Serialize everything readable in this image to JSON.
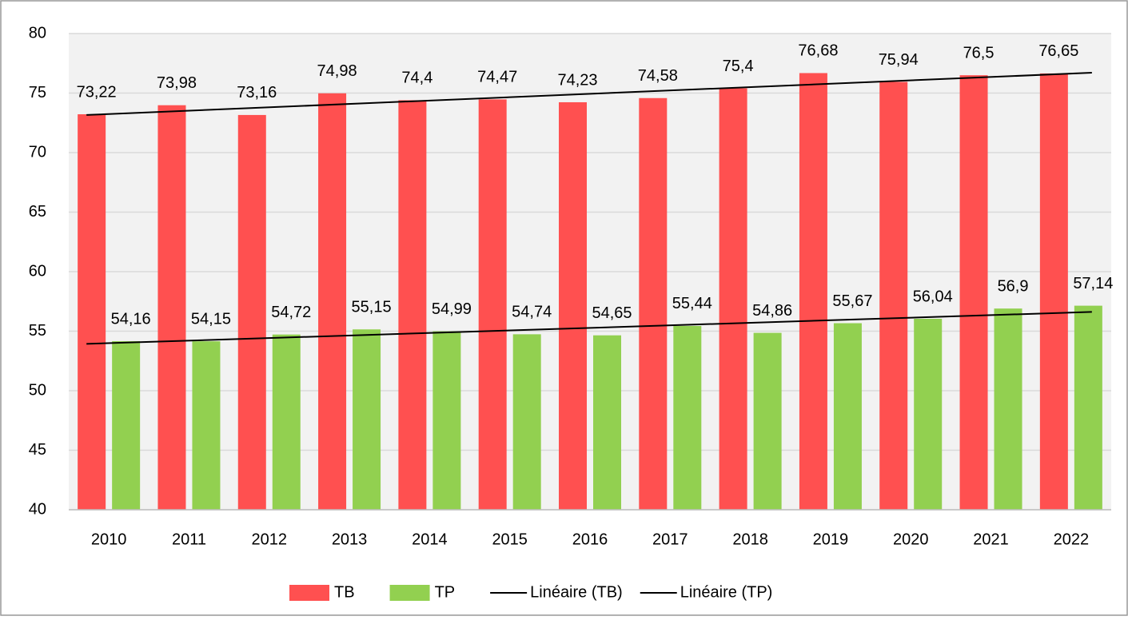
{
  "chart_data": {
    "type": "bar",
    "categories": [
      "2010",
      "2011",
      "2012",
      "2013",
      "2014",
      "2015",
      "2016",
      "2017",
      "2018",
      "2019",
      "2020",
      "2021",
      "2022"
    ],
    "series": [
      {
        "name": "TB",
        "color": "#ff5050",
        "values": [
          73.22,
          73.98,
          73.16,
          74.98,
          74.4,
          74.47,
          74.23,
          74.58,
          75.4,
          76.68,
          75.94,
          76.5,
          76.65
        ],
        "value_labels": [
          "73,22",
          "73,98",
          "73,16",
          "74,98",
          "74,4",
          "74,47",
          "74,23",
          "74,58",
          "75,4",
          "76,68",
          "75,94",
          "76,5",
          "76,65"
        ],
        "trendline": {
          "name": "Linéaire (TB)",
          "color": "#000000"
        }
      },
      {
        "name": "TP",
        "color": "#92d050",
        "values": [
          54.16,
          54.15,
          54.72,
          55.15,
          54.99,
          54.74,
          54.65,
          55.44,
          54.86,
          55.67,
          56.04,
          56.9,
          57.14
        ],
        "value_labels": [
          "54,16",
          "54,15",
          "54,72",
          "55,15",
          "54,99",
          "54,74",
          "54,65",
          "55,44",
          "54,86",
          "55,67",
          "56,04",
          "56,9",
          "57,14"
        ],
        "trendline": {
          "name": "Linéaire (TP)",
          "color": "#000000"
        }
      }
    ],
    "ylim": [
      40,
      80
    ],
    "yticks": [
      40,
      45,
      50,
      55,
      60,
      65,
      70,
      75,
      80
    ],
    "grid": true,
    "legend": "bottom"
  }
}
